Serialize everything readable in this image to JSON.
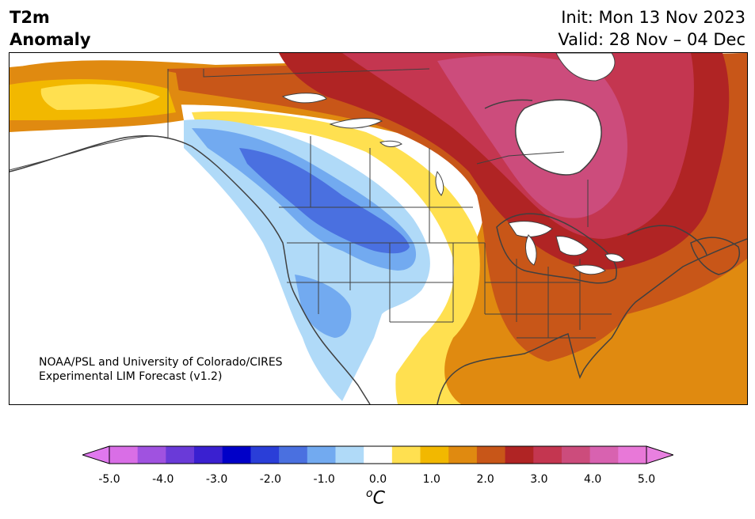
{
  "title": {
    "left_line1": "T2m",
    "left_line2": "Anomaly",
    "right_line1": "Init: Mon 13 Nov 2023",
    "right_line2": "Valid: 28 Nov – 04 Dec"
  },
  "credit": {
    "line1": "NOAA/PSL and University of Colorado/CIRES",
    "line2": "Experimental LIM Forecast (v1.2)"
  },
  "colorbar": {
    "unit_base": "C",
    "unit_sup": "o",
    "ticks": [
      "-5.0",
      "-4.0",
      "-3.0",
      "-2.0",
      "-1.0",
      "0.0",
      "1.0",
      "2.0",
      "3.0",
      "4.0",
      "5.0"
    ],
    "levels": [
      -5.0,
      -4.5,
      -4.0,
      -3.5,
      -3.0,
      -2.5,
      -2.0,
      -1.5,
      -1.0,
      -0.5,
      0.5,
      1.0,
      1.5,
      2.0,
      2.5,
      3.0,
      3.5,
      4.0,
      4.5,
      5.0
    ],
    "colors": [
      "#d96ee6",
      "#a052e0",
      "#6a3ad8",
      "#3a20d0",
      "#0000c8",
      "#2a3ed8",
      "#4a70e0",
      "#72aaf0",
      "#b0daf8",
      "#ffffff",
      "#ffe050",
      "#f2b800",
      "#e08a10",
      "#c85618",
      "#b02424",
      "#c43650",
      "#cc4c7c",
      "#d862b0",
      "#e878d8"
    ],
    "under_color": "#e078ee",
    "over_color": "#e880e0"
  },
  "map_colors": {
    "land_outline": "#404040",
    "hot": "#b02424",
    "very_hot": "#c43650",
    "magenta": "#cc4c7c",
    "orange": "#c85618",
    "amber": "#e08a10",
    "gold": "#f2b800",
    "yellow": "#ffe050",
    "cold_light": "#b0daf8",
    "cold_mid": "#72aaf0",
    "cold_deep": "#4a70e0"
  }
}
